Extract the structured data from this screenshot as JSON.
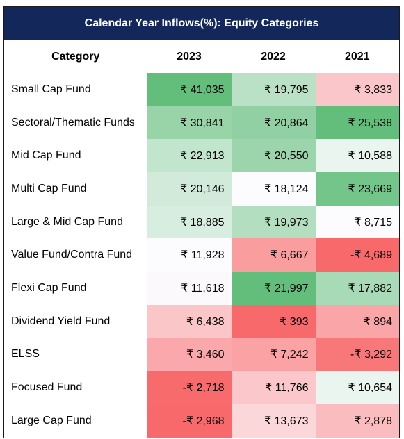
{
  "chart_data": {
    "type": "heatmap",
    "title": "Calendar Year Inflows(%): Equity Categories",
    "row_header": "Category",
    "columns": [
      "2023",
      "2022",
      "2021"
    ],
    "currency_symbol": "₹",
    "rows": [
      {
        "category": "Small Cap Fund",
        "values": [
          41035,
          19795,
          3833
        ]
      },
      {
        "category": "Sectoral/Thematic Funds",
        "values": [
          30841,
          20864,
          25538
        ]
      },
      {
        "category": "Mid Cap Fund",
        "values": [
          22913,
          20550,
          10588
        ]
      },
      {
        "category": "Multi Cap Fund",
        "values": [
          20146,
          18124,
          23669
        ]
      },
      {
        "category": "Large & Mid Cap Fund",
        "values": [
          18885,
          19973,
          8715
        ]
      },
      {
        "category": "Value Fund/Contra Fund",
        "values": [
          11928,
          6667,
          -4689
        ]
      },
      {
        "category": "Flexi Cap Fund",
        "values": [
          11618,
          21997,
          17882
        ]
      },
      {
        "category": "Dividend Yield Fund",
        "values": [
          6438,
          393,
          894
        ]
      },
      {
        "category": "ELSS",
        "values": [
          3460,
          7242,
          -3292
        ]
      },
      {
        "category": "Focused Fund",
        "values": [
          -2718,
          11766,
          10654
        ]
      },
      {
        "category": "Large Cap Fund",
        "values": [
          -2968,
          13673,
          2878
        ]
      }
    ],
    "color_scale": {
      "low": "#f8696b",
      "mid": "#fcfcff",
      "high": "#63be7b",
      "scope": "per-column"
    }
  }
}
